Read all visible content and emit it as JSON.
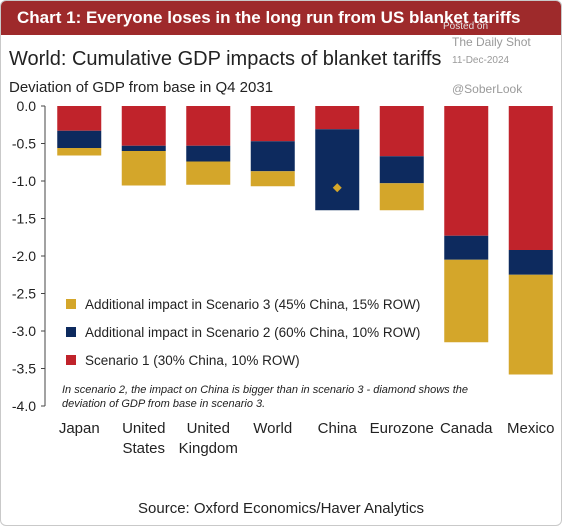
{
  "header": {
    "title": "Chart 1: Everyone loses in the long run from US blanket tariffs"
  },
  "watermark": {
    "posted": "Posted on",
    "site": "The Daily Shot",
    "date": "11-Dec-2024",
    "handle": "@SoberLook"
  },
  "source": "Source: Oxford Economics/Haver Analytics",
  "colors": {
    "header": "#9e2a2b",
    "scenario1": "#c0232b",
    "scenario2": "#0d2a5e",
    "scenario3": "#d4a62a"
  },
  "chart_data": {
    "type": "bar",
    "stacked": true,
    "title": "World: Cumulative GDP impacts of blanket tariffs",
    "ylabel": "Deviation of GDP from base in Q4 2031",
    "xlabel": "",
    "ylim": [
      -4.0,
      0.0
    ],
    "yticks": [
      "0.0",
      "-0.5",
      "-1.0",
      "-1.5",
      "-2.0",
      "-2.5",
      "-3.0",
      "-3.5",
      "-4.0"
    ],
    "grid": false,
    "legend_position": "bottom-left",
    "categories": [
      [
        "Japan"
      ],
      [
        "United",
        "States"
      ],
      [
        "United",
        "Kingdom"
      ],
      [
        "World"
      ],
      [
        "China"
      ],
      [
        "Eurozone"
      ],
      [
        "Canada"
      ],
      [
        "Mexico"
      ]
    ],
    "series": [
      {
        "name": "Scenario 1 (30% China, 10% ROW)",
        "color": "#c0232b",
        "values": [
          -0.33,
          -0.53,
          -0.53,
          -0.47,
          -0.31,
          -0.67,
          -1.73,
          -1.92
        ]
      },
      {
        "name": "Additional impact in Scenario 2 (60% China, 10% ROW)",
        "color": "#0d2a5e",
        "values": [
          -0.23,
          -0.07,
          -0.21,
          -0.4,
          -1.08,
          -0.36,
          -0.32,
          -0.33
        ]
      },
      {
        "name": "Additional impact in Scenario 3 (45% China, 15% ROW)",
        "color": "#d4a62a",
        "values": [
          -0.1,
          -0.46,
          -0.31,
          -0.2,
          0.0,
          -0.36,
          -1.1,
          -1.33
        ]
      }
    ],
    "diamond": {
      "category_index": 4,
      "value": -1.09,
      "color": "#d4a62a"
    },
    "legend_order": [
      2,
      1,
      0
    ],
    "note": [
      "In scenario 2, the impact on China is bigger than in scenario 3  - diamond shows the",
      "deviation of GDP from base in scenario 3."
    ]
  }
}
